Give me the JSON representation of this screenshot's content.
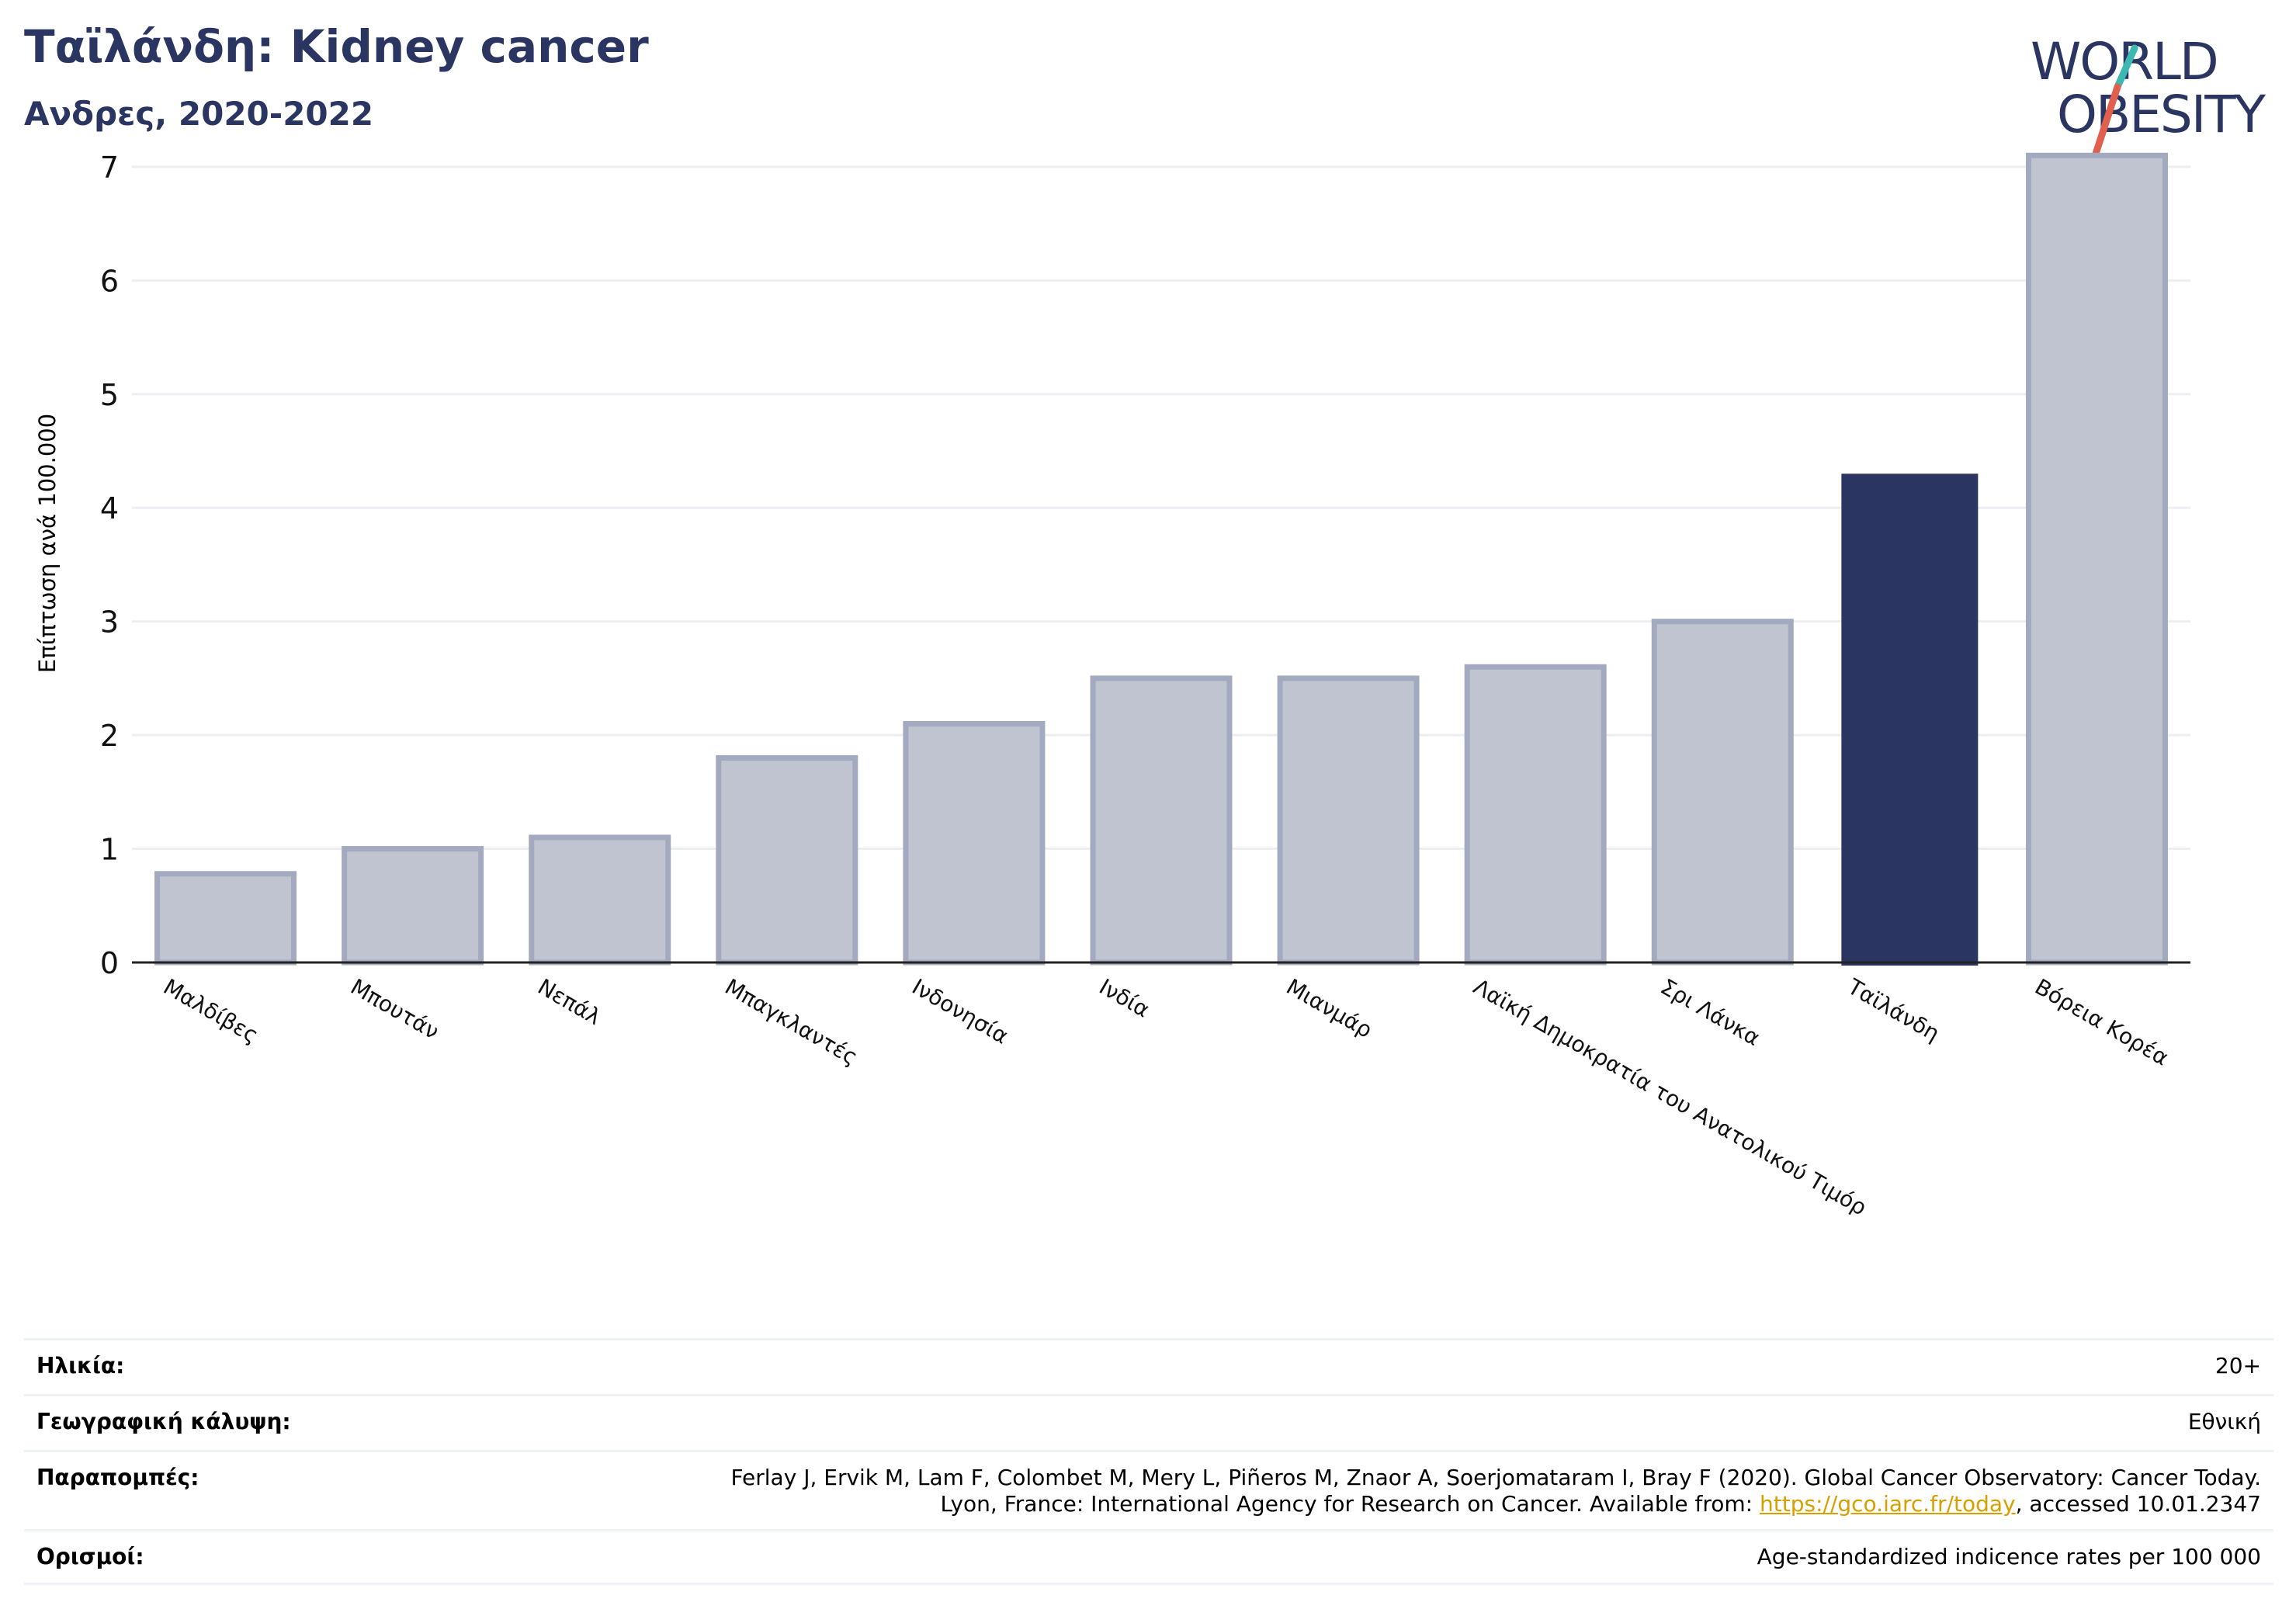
{
  "header": {
    "title": "Ταϊλάνδη: Kidney cancer",
    "subtitle": "Ανδρες, 2020-2022"
  },
  "logo": {
    "line1": "WORLD",
    "line2": "OBESITY",
    "text_color": "#2a3561",
    "slash_color_top": "#3bb8b0",
    "slash_color_bottom": "#e0604d"
  },
  "chart_data": {
    "type": "bar",
    "title": "Ταϊλάνδη: Kidney cancer",
    "subtitle": "Ανδρες, 2020-2022",
    "ylabel": "Επίπτωση ανά 100.000",
    "xlabel": "",
    "ylim": [
      0,
      7.3
    ],
    "yticks": [
      0,
      1,
      2,
      3,
      4,
      5,
      6,
      7
    ],
    "grid": true,
    "categories": [
      "Μαλδίβες",
      "Μπουτάν",
      "Νεπάλ",
      "Μπαγκλαντές",
      "Ινδονησία",
      "Ινδία",
      "Μιανμάρ",
      "Λαϊκή Δημοκρατία του Ανατολικού Τιμόρ",
      "Σρι Λάνκα",
      "Ταϊλάνδη",
      "Βόρεια Κορέα"
    ],
    "values": [
      0.78,
      1.0,
      1.1,
      1.8,
      2.1,
      2.5,
      2.5,
      2.6,
      3.0,
      4.3,
      7.1
    ],
    "highlight": "Ταϊλάνδη",
    "colors": {
      "bar": "#c0c4d0",
      "bar_edge": "#a3a9be",
      "highlight": "#2a3561",
      "grid": "#eceef2",
      "axis": "#222222"
    }
  },
  "meta": {
    "rows": [
      {
        "label": "Ηλικία:",
        "value": "20+"
      },
      {
        "label": "Γεωγραφική κάλυψη:",
        "value": "Εθνική"
      },
      {
        "label": "Παραπομπές:",
        "value_line1": "Ferlay J, Ervik M, Lam F, Colombet M, Mery L, Piñeros M, Znaor A, Soerjomataram I, Bray F (2020). Global Cancer Observatory: Cancer Today.",
        "value_line2_pre": "Lyon, France: International Agency for Research on Cancer. Available from: ",
        "link": "https://gco.iarc.fr/today",
        "value_line2_post": ", accessed 10.01.2347"
      },
      {
        "label": "Ορισμοί:",
        "value": "Age-standardized indicence rates per 100 000"
      }
    ]
  }
}
